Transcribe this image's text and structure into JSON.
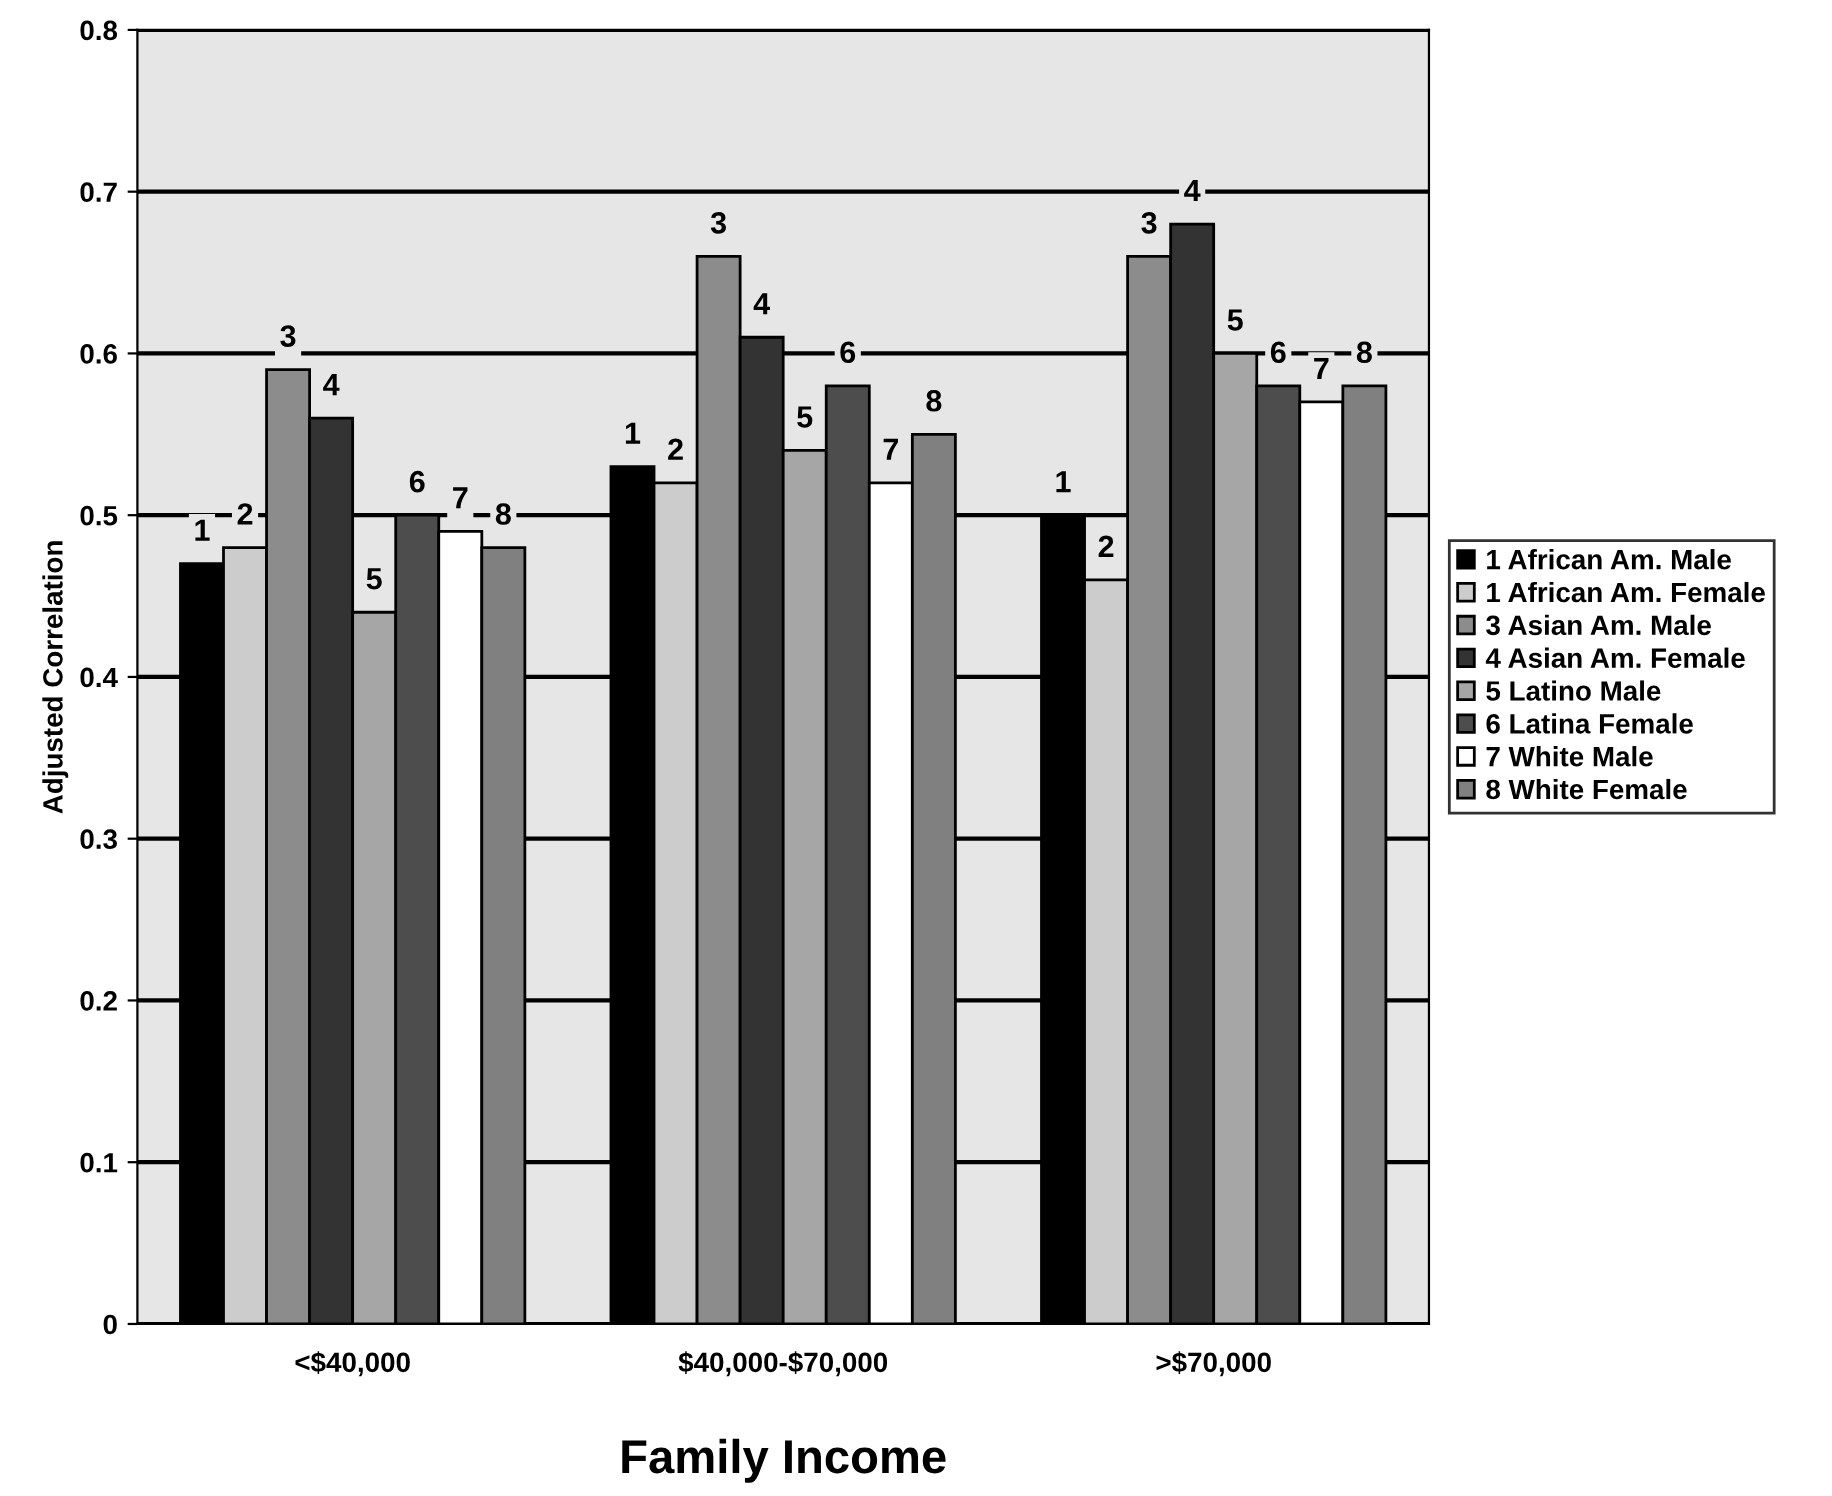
{
  "chart_data": {
    "type": "bar",
    "xlabel": "Family Income",
    "ylabel": "Adjusted Correlation",
    "categories": [
      "<$40,000",
      "$40,000-$70,000",
      ">$70,000"
    ],
    "series": [
      {
        "name": "1 African Am. Male",
        "color": "#000000",
        "values": [
          0.47,
          0.53,
          0.5
        ]
      },
      {
        "name": "1 African Am. Female",
        "color": "#cccccc",
        "values": [
          0.48,
          0.52,
          0.46
        ]
      },
      {
        "name": "3 Asian Am. Male",
        "color": "#8c8c8c",
        "values": [
          0.59,
          0.66,
          0.66
        ]
      },
      {
        "name": "4 Asian Am. Female",
        "color": "#333333",
        "values": [
          0.56,
          0.61,
          0.68
        ]
      },
      {
        "name": "5 Latino Male",
        "color": "#a6a6a6",
        "values": [
          0.44,
          0.54,
          0.6
        ]
      },
      {
        "name": "6 Latina Female",
        "color": "#4d4d4d",
        "values": [
          0.5,
          0.58,
          0.58
        ]
      },
      {
        "name": "7 White Male",
        "color": "#ffffff",
        "values": [
          0.49,
          0.52,
          0.57
        ]
      },
      {
        "name": "8 White Female",
        "color": "#808080",
        "values": [
          0.48,
          0.55,
          0.58
        ]
      }
    ],
    "annotations": [
      "1",
      "1",
      "1",
      "2",
      "2",
      "2",
      "3",
      "3",
      "3",
      "4",
      "4",
      "4",
      "5",
      "5",
      "5",
      "6",
      "6",
      "6",
      "7",
      "7",
      "7",
      "8",
      "8",
      "8"
    ],
    "ylim": [
      0,
      0.8
    ],
    "yticks": [
      {
        "value": 0,
        "label": "0"
      },
      0.1,
      0.2,
      0.3,
      0.4,
      0.5,
      0.6,
      0.7,
      0.8
    ],
    "grid": "y",
    "legend": "right"
  }
}
